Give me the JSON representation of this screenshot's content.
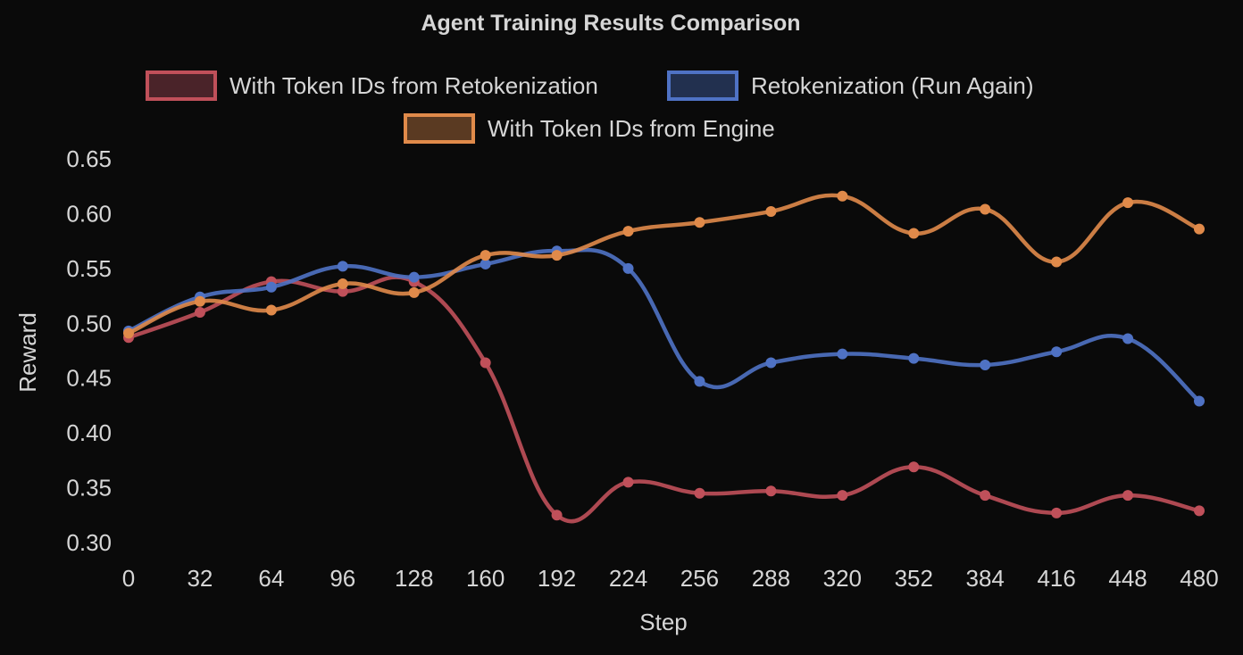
{
  "chart_data": {
    "type": "line",
    "title": "Agent Training Results Comparison",
    "xlabel": "Step",
    "ylabel": "Reward",
    "ylim": [
      0.3,
      0.65
    ],
    "yticks": [
      "0.30",
      "0.35",
      "0.40",
      "0.45",
      "0.50",
      "0.55",
      "0.60",
      "0.65"
    ],
    "x": [
      0,
      32,
      64,
      96,
      128,
      160,
      192,
      224,
      256,
      288,
      320,
      352,
      384,
      416,
      448,
      480
    ],
    "grid": false,
    "legend_position": "top",
    "series": [
      {
        "name": "With Token IDs from Retokenization",
        "color": "#c0505a",
        "fill": "#4a2329",
        "values": [
          0.487,
          0.51,
          0.538,
          0.529,
          0.538,
          0.464,
          0.325,
          0.355,
          0.345,
          0.347,
          0.343,
          0.369,
          0.343,
          0.327,
          0.343,
          0.329
        ]
      },
      {
        "name": "Retokenization (Run Again)",
        "color": "#4f72c4",
        "fill": "#22304f",
        "values": [
          0.493,
          0.524,
          0.533,
          0.552,
          0.542,
          0.554,
          0.566,
          0.55,
          0.447,
          0.464,
          0.472,
          0.468,
          0.462,
          0.474,
          0.486,
          0.429
        ]
      },
      {
        "name": "With Token IDs from Engine",
        "color": "#e08a4a",
        "fill": "#5a3a22",
        "values": [
          0.491,
          0.52,
          0.512,
          0.536,
          0.528,
          0.562,
          0.562,
          0.584,
          0.592,
          0.602,
          0.616,
          0.582,
          0.604,
          0.556,
          0.61,
          0.586
        ]
      }
    ]
  }
}
